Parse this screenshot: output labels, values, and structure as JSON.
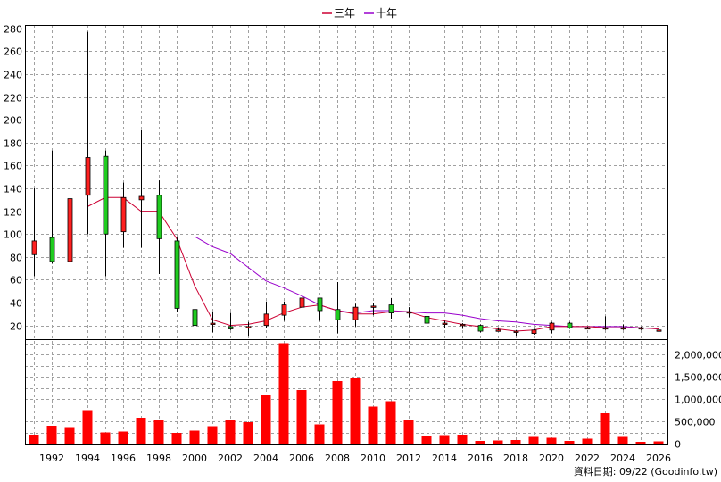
{
  "legend": [
    {
      "label": "三年",
      "color": "#cc0033"
    },
    {
      "label": "十年",
      "color": "#9900cc"
    }
  ],
  "source_text": "資料日期: 09/22 (Goodinfo.tw)",
  "colors": {
    "up": "#ff2020",
    "down": "#20cc20",
    "volume": "#ff0000",
    "ma3": "#cc0033",
    "ma10": "#9900cc",
    "grid": "#a0a0a0"
  },
  "chart_data": {
    "type": "candlestick",
    "x_ticks": [
      "1992",
      "1994",
      "1996",
      "1998",
      "2000",
      "2002",
      "2004",
      "2006",
      "2008",
      "2010",
      "2012",
      "2014",
      "2016",
      "2018",
      "2020",
      "2022",
      "2024",
      "2026"
    ],
    "x_range": [
      1990.5,
      2026.5
    ],
    "price_axis": {
      "ticks": [
        20,
        40,
        60,
        80,
        100,
        120,
        140,
        160,
        180,
        200,
        220,
        240,
        260,
        280
      ],
      "range": [
        8,
        283
      ]
    },
    "volume_axis": {
      "ticks": [
        0,
        500000,
        1000000,
        1500000,
        2000000
      ],
      "tick_labels": [
        "0",
        "500,000",
        "1,000,000",
        "1,500,000",
        "2,000,000"
      ],
      "range": [
        0,
        2340000
      ]
    },
    "candles": [
      {
        "year": 1991,
        "open": 82,
        "close": 94,
        "high": 140,
        "low": 63,
        "color": "up"
      },
      {
        "year": 1992,
        "open": 97,
        "close": 76,
        "high": 173,
        "low": 74,
        "color": "down"
      },
      {
        "year": 1993,
        "open": 76,
        "close": 131,
        "high": 140,
        "low": 59,
        "color": "up"
      },
      {
        "year": 1994,
        "open": 134,
        "close": 167,
        "high": 277,
        "low": 100,
        "color": "up"
      },
      {
        "year": 1995,
        "open": 168,
        "close": 100,
        "high": 173,
        "low": 63,
        "color": "down"
      },
      {
        "year": 1996,
        "open": 102,
        "close": 132,
        "high": 145,
        "low": 88,
        "color": "up"
      },
      {
        "year": 1997,
        "open": 130,
        "close": 133,
        "high": 191,
        "low": 88,
        "color": "up"
      },
      {
        "year": 1998,
        "open": 134,
        "close": 96,
        "high": 147,
        "low": 65,
        "color": "down"
      },
      {
        "year": 1999,
        "open": 94,
        "close": 35,
        "high": 97,
        "low": 32,
        "color": "down"
      },
      {
        "year": 2000,
        "open": 34,
        "close": 20,
        "high": 51,
        "low": 13,
        "color": "down"
      },
      {
        "year": 2001,
        "open": 21,
        "close": 22,
        "high": 32,
        "low": 14,
        "color": "up"
      },
      {
        "year": 2002,
        "open": 19,
        "close": 17,
        "high": 31,
        "low": 16,
        "color": "down"
      },
      {
        "year": 2003,
        "open": 18,
        "close": 19,
        "high": 23,
        "low": 11,
        "color": "up"
      },
      {
        "year": 2004,
        "open": 20,
        "close": 30,
        "high": 41,
        "low": 18,
        "color": "up"
      },
      {
        "year": 2005,
        "open": 29,
        "close": 38,
        "high": 41,
        "low": 24,
        "color": "up"
      },
      {
        "year": 2006,
        "open": 36,
        "close": 44,
        "high": 47,
        "low": 30,
        "color": "up"
      },
      {
        "year": 2007,
        "open": 44,
        "close": 33,
        "high": 44,
        "low": 24,
        "color": "down"
      },
      {
        "year": 2008,
        "open": 34,
        "close": 25,
        "high": 58,
        "low": 13,
        "color": "down"
      },
      {
        "year": 2009,
        "open": 25,
        "close": 36,
        "high": 39,
        "low": 19,
        "color": "up"
      },
      {
        "year": 2010,
        "open": 36,
        "close": 37,
        "high": 40,
        "low": 29,
        "color": "up"
      },
      {
        "year": 2011,
        "open": 38,
        "close": 31,
        "high": 44,
        "low": 26,
        "color": "down"
      },
      {
        "year": 2012,
        "open": 32,
        "close": 31,
        "high": 36,
        "low": 27,
        "color": "up"
      },
      {
        "year": 2013,
        "open": 28,
        "close": 22,
        "high": 31,
        "low": 21,
        "color": "down"
      },
      {
        "year": 2014,
        "open": 22,
        "close": 22,
        "high": 24,
        "low": 18,
        "color": "up"
      },
      {
        "year": 2015,
        "open": 21,
        "close": 20,
        "high": 22,
        "low": 17,
        "color": "up"
      },
      {
        "year": 2016,
        "open": 20,
        "close": 15,
        "high": 21,
        "low": 14,
        "color": "down"
      },
      {
        "year": 2017,
        "open": 16,
        "close": 16,
        "high": 18,
        "low": 15,
        "color": "up"
      },
      {
        "year": 2018,
        "open": 15,
        "close": 14,
        "high": 16,
        "low": 11,
        "color": "up"
      },
      {
        "year": 2019,
        "open": 13,
        "close": 16,
        "high": 17,
        "low": 12,
        "color": "up"
      },
      {
        "year": 2020,
        "open": 16,
        "close": 22,
        "high": 23,
        "low": 13,
        "color": "up"
      },
      {
        "year": 2021,
        "open": 22,
        "close": 18,
        "high": 23,
        "low": 17,
        "color": "down"
      },
      {
        "year": 2022,
        "open": 18,
        "close": 18,
        "high": 19,
        "low": 17,
        "color": "up"
      },
      {
        "year": 2023,
        "open": 17,
        "close": 18,
        "high": 28,
        "low": 16,
        "color": "up"
      },
      {
        "year": 2024,
        "open": 18,
        "close": 18,
        "high": 21,
        "low": 16,
        "color": "up"
      },
      {
        "year": 2025,
        "open": 17,
        "close": 18,
        "high": 19,
        "low": 16,
        "color": "up"
      },
      {
        "year": 2026,
        "open": 16,
        "close": 16,
        "high": 18,
        "low": 15,
        "color": "up"
      }
    ],
    "ma3": {
      "name": "三年",
      "points": [
        [
          1994,
          124
        ],
        [
          1995,
          132
        ],
        [
          1996,
          132
        ],
        [
          1997,
          120
        ],
        [
          1998,
          120
        ],
        [
          1999,
          96
        ],
        [
          2000,
          55
        ],
        [
          2001,
          25
        ],
        [
          2002,
          20
        ],
        [
          2003,
          21
        ],
        [
          2004,
          24
        ],
        [
          2005,
          31
        ],
        [
          2006,
          36
        ],
        [
          2007,
          38
        ],
        [
          2008,
          33
        ],
        [
          2009,
          30
        ],
        [
          2010,
          30
        ],
        [
          2011,
          32
        ],
        [
          2012,
          32
        ],
        [
          2013,
          27
        ],
        [
          2014,
          24
        ],
        [
          2015,
          21
        ],
        [
          2016,
          19
        ],
        [
          2017,
          17
        ],
        [
          2018,
          15
        ],
        [
          2019,
          16
        ],
        [
          2020,
          19
        ],
        [
          2021,
          19
        ],
        [
          2022,
          19
        ],
        [
          2023,
          18
        ],
        [
          2024,
          18
        ],
        [
          2025,
          18
        ],
        [
          2026,
          17
        ]
      ]
    },
    "ma10": {
      "name": "十年",
      "points": [
        [
          2000,
          98
        ],
        [
          2001,
          89
        ],
        [
          2002,
          83
        ],
        [
          2003,
          71
        ],
        [
          2004,
          59
        ],
        [
          2005,
          53
        ],
        [
          2006,
          46
        ],
        [
          2007,
          38
        ],
        [
          2008,
          33
        ],
        [
          2009,
          31
        ],
        [
          2010,
          33
        ],
        [
          2011,
          33
        ],
        [
          2012,
          32
        ],
        [
          2013,
          31
        ],
        [
          2014,
          31
        ],
        [
          2015,
          29
        ],
        [
          2016,
          26
        ],
        [
          2017,
          24
        ],
        [
          2018,
          23
        ],
        [
          2019,
          21
        ],
        [
          2020,
          20
        ],
        [
          2021,
          19
        ],
        [
          2022,
          19
        ],
        [
          2023,
          19
        ],
        [
          2024,
          19
        ],
        [
          2025,
          18
        ],
        [
          2026,
          17
        ]
      ]
    },
    "volume": [
      {
        "year": 1991,
        "value": 200000
      },
      {
        "year": 1992,
        "value": 400000
      },
      {
        "year": 1993,
        "value": 370000
      },
      {
        "year": 1994,
        "value": 750000
      },
      {
        "year": 1995,
        "value": 250000
      },
      {
        "year": 1996,
        "value": 270000
      },
      {
        "year": 1997,
        "value": 580000
      },
      {
        "year": 1998,
        "value": 520000
      },
      {
        "year": 1999,
        "value": 240000
      },
      {
        "year": 2000,
        "value": 290000
      },
      {
        "year": 2001,
        "value": 390000
      },
      {
        "year": 2002,
        "value": 540000
      },
      {
        "year": 2003,
        "value": 480000
      },
      {
        "year": 2004,
        "value": 1080000
      },
      {
        "year": 2005,
        "value": 2250000
      },
      {
        "year": 2006,
        "value": 1200000
      },
      {
        "year": 2007,
        "value": 430000
      },
      {
        "year": 2008,
        "value": 1400000
      },
      {
        "year": 2009,
        "value": 1460000
      },
      {
        "year": 2010,
        "value": 830000
      },
      {
        "year": 2011,
        "value": 950000
      },
      {
        "year": 2012,
        "value": 540000
      },
      {
        "year": 2013,
        "value": 170000
      },
      {
        "year": 2014,
        "value": 190000
      },
      {
        "year": 2015,
        "value": 200000
      },
      {
        "year": 2016,
        "value": 60000
      },
      {
        "year": 2017,
        "value": 70000
      },
      {
        "year": 2018,
        "value": 80000
      },
      {
        "year": 2019,
        "value": 150000
      },
      {
        "year": 2020,
        "value": 130000
      },
      {
        "year": 2021,
        "value": 60000
      },
      {
        "year": 2022,
        "value": 110000
      },
      {
        "year": 2023,
        "value": 680000
      },
      {
        "year": 2024,
        "value": 150000
      },
      {
        "year": 2025,
        "value": 40000
      },
      {
        "year": 2026,
        "value": 50000
      }
    ],
    "grid": true,
    "legend_position": "top-center"
  }
}
